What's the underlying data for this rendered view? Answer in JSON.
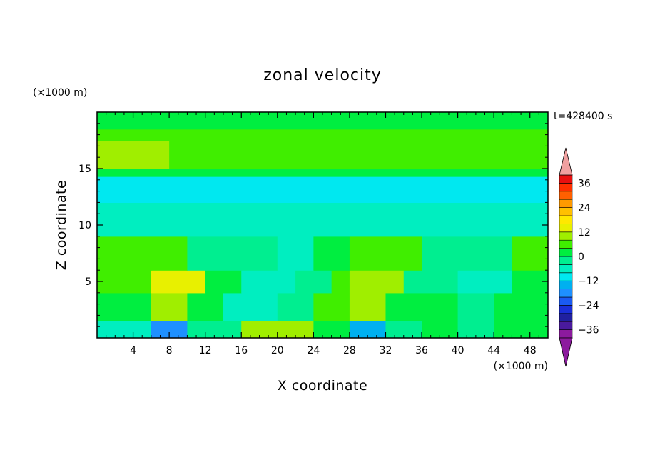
{
  "chart_data": {
    "type": "heatmap",
    "title": "zonal velocity",
    "xlabel": "X coordinate",
    "ylabel": "Z coordinate",
    "x_unit": "(×1000 m)",
    "y_unit": "(×1000 m)",
    "time_label": "t=428400 s",
    "xlim": [
      0,
      50
    ],
    "ylim": [
      0,
      20
    ],
    "x_ticks": [
      4,
      8,
      12,
      16,
      20,
      24,
      28,
      32,
      36,
      40,
      44,
      48
    ],
    "y_ticks": [
      5,
      10,
      15
    ],
    "colorbar": {
      "levels": [
        -40,
        -36,
        -32,
        -28,
        -24,
        -20,
        -16,
        -12,
        -8,
        -4,
        0,
        4,
        8,
        12,
        16,
        20,
        24,
        28,
        32,
        36,
        40
      ],
      "tick_values": [
        36,
        24,
        12,
        0,
        -12,
        -24,
        -36
      ],
      "tick_labels": [
        "36",
        "24",
        "12",
        "0",
        "−12",
        "−24",
        "−36"
      ],
      "colors": [
        "#8c1a9e",
        "#4a1a9e",
        "#2020a0",
        "#1a2ed8",
        "#1a5af2",
        "#1e90ff",
        "#00b0f0",
        "#00e8f0",
        "#00eec0",
        "#00ee90",
        "#00ee40",
        "#40ee00",
        "#a0ee00",
        "#e8f000",
        "#ffe800",
        "#ffc000",
        "#ff9a00",
        "#ff6000",
        "#ff3000",
        "#e81010"
      ],
      "under_color": "#8c1a9e",
      "over_color": "#f0a0a0"
    },
    "layers": [
      {
        "z_range": [
          0,
          1.5
        ],
        "value_at_x": [
          [
            0,
            -6
          ],
          [
            6,
            -18
          ],
          [
            10,
            -2
          ],
          [
            16,
            10
          ],
          [
            20,
            10
          ],
          [
            24,
            0
          ],
          [
            28,
            -14
          ],
          [
            32,
            -4
          ],
          [
            36,
            0
          ],
          [
            40,
            -2
          ],
          [
            44,
            0
          ],
          [
            50,
            2
          ]
        ]
      },
      {
        "z_range": [
          1.5,
          4
        ],
        "value_at_x": [
          [
            0,
            2
          ],
          [
            6,
            10
          ],
          [
            10,
            2
          ],
          [
            14,
            -8
          ],
          [
            20,
            -4
          ],
          [
            24,
            4
          ],
          [
            28,
            8
          ],
          [
            32,
            2
          ],
          [
            40,
            -2
          ],
          [
            44,
            2
          ],
          [
            50,
            0
          ]
        ]
      },
      {
        "z_range": [
          4,
          6
        ],
        "value_at_x": [
          [
            0,
            4
          ],
          [
            6,
            12
          ],
          [
            12,
            0
          ],
          [
            16,
            -8
          ],
          [
            22,
            -4
          ],
          [
            26,
            4
          ],
          [
            28,
            8
          ],
          [
            34,
            -4
          ],
          [
            40,
            -8
          ],
          [
            46,
            0
          ],
          [
            50,
            2
          ]
        ]
      },
      {
        "z_range": [
          6,
          9
        ],
        "value_at_x": [
          [
            0,
            6
          ],
          [
            6,
            4
          ],
          [
            10,
            -2
          ],
          [
            20,
            -6
          ],
          [
            24,
            0
          ],
          [
            28,
            4
          ],
          [
            36,
            -4
          ],
          [
            40,
            -2
          ],
          [
            46,
            4
          ],
          [
            50,
            4
          ]
        ]
      },
      {
        "z_range": [
          9,
          12
        ],
        "value_at_x": [
          [
            0,
            -6
          ],
          [
            50,
            -6
          ]
        ]
      },
      {
        "z_range": [
          12,
          14.3
        ],
        "value_at_x": [
          [
            0,
            -10
          ],
          [
            50,
            -10
          ]
        ]
      },
      {
        "z_range": [
          14.3,
          15
        ],
        "value_at_x": [
          [
            0,
            2
          ],
          [
            50,
            2
          ]
        ]
      },
      {
        "z_range": [
          15,
          17.5
        ],
        "value_at_x": [
          [
            0,
            8
          ],
          [
            8,
            6
          ],
          [
            20,
            6
          ],
          [
            40,
            6
          ],
          [
            50,
            6
          ]
        ]
      },
      {
        "z_range": [
          17.5,
          18.5
        ],
        "value_at_x": [
          [
            0,
            4
          ],
          [
            50,
            4
          ]
        ]
      },
      {
        "z_range": [
          18.5,
          20
        ],
        "value_at_x": [
          [
            0,
            2
          ],
          [
            50,
            2
          ]
        ]
      }
    ]
  }
}
